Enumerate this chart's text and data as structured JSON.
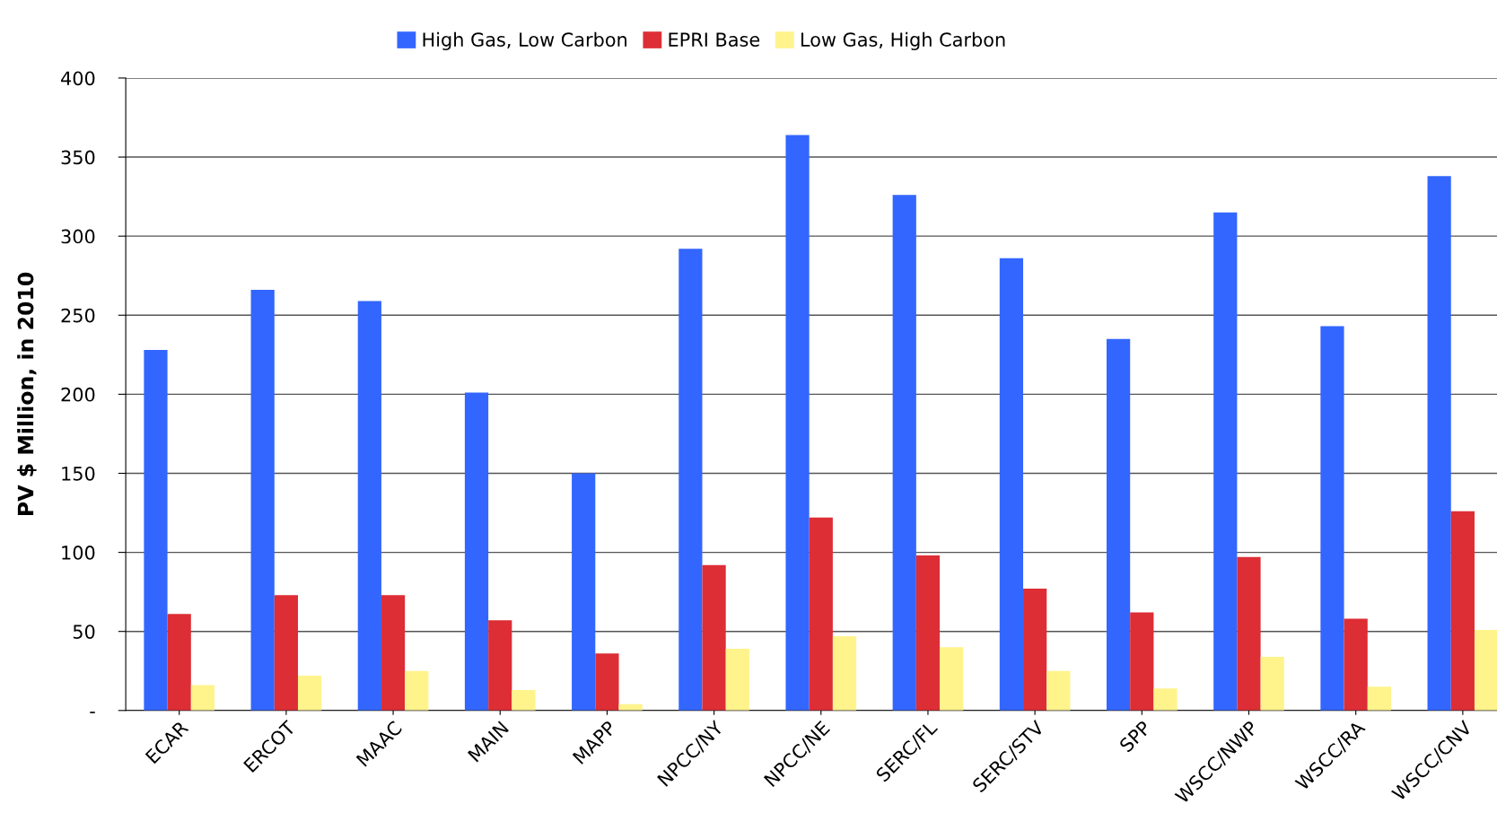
{
  "chart_data": {
    "type": "bar",
    "ylabel": "PV $ Million, in 2010",
    "categories": [
      "ECAR",
      "ERCOT",
      "MAAC",
      "MAIN",
      "MAPP",
      "NPCC/NY",
      "NPCC/NE",
      "SERC/FL",
      "SERC/STV",
      "SPP",
      "WSCC/NWP",
      "WSCC/RA",
      "WSCC/CNV"
    ],
    "series": [
      {
        "name": "High Gas, Low Carbon",
        "color": "#3366ff",
        "values": [
          228,
          266,
          259,
          201,
          150,
          292,
          364,
          326,
          286,
          235,
          315,
          243,
          338
        ]
      },
      {
        "name": "EPRI Base",
        "color": "#dd2e35",
        "values": [
          61,
          73,
          73,
          57,
          36,
          92,
          122,
          98,
          77,
          62,
          97,
          58,
          126
        ]
      },
      {
        "name": "Low Gas, High Carbon",
        "color": "#fff38c",
        "values": [
          16,
          22,
          25,
          13,
          4,
          39,
          47,
          40,
          25,
          14,
          34,
          15,
          51
        ]
      }
    ],
    "ylim": [
      0,
      400
    ],
    "yticks": [
      {
        "value": 0,
        "label": "-"
      },
      50,
      100,
      150,
      200,
      250,
      300,
      350,
      400
    ],
    "grid": "y",
    "legend": "top"
  }
}
